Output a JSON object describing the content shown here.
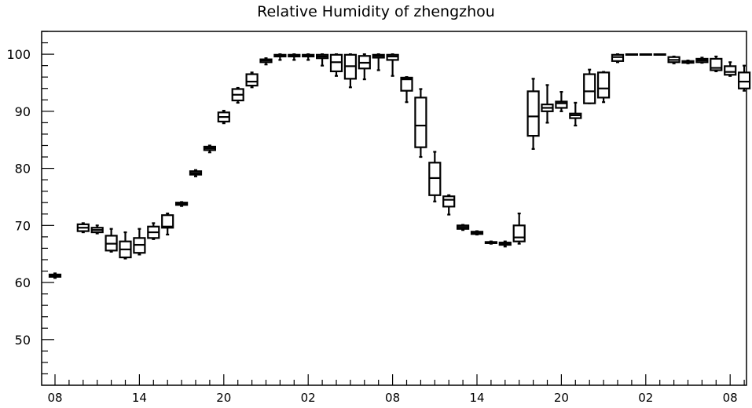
{
  "chart_data": {
    "type": "box",
    "title": "Relative Humidity of zhengzhou",
    "xlabel": "",
    "ylabel": "",
    "ylim": [
      42,
      104
    ],
    "yticks": [
      50,
      60,
      70,
      80,
      90,
      100
    ],
    "xticks": [
      {
        "label": "08",
        "index": 0
      },
      {
        "label": "14",
        "index": 6
      },
      {
        "label": "20",
        "index": 12
      },
      {
        "label": "02",
        "index": 18
      },
      {
        "label": "08",
        "index": 24
      },
      {
        "label": "14",
        "index": 30
      },
      {
        "label": "20",
        "index": 36
      },
      {
        "label": "02",
        "index": 42
      },
      {
        "label": "08",
        "index": 48
      }
    ],
    "grid": false,
    "colors": {
      "box": "#000000",
      "background": "#ffffff"
    },
    "boxes": [
      {
        "i": 0,
        "min": 60.8,
        "q1": 61.0,
        "median": 61.2,
        "q3": 61.4,
        "max": 61.6
      },
      {
        "i": 2,
        "min": 68.8,
        "q1": 69.0,
        "median": 69.6,
        "q3": 70.2,
        "max": 70.4
      },
      {
        "i": 3,
        "min": 68.6,
        "q1": 68.8,
        "median": 69.2,
        "q3": 69.6,
        "max": 70.0
      },
      {
        "i": 4,
        "min": 65.4,
        "q1": 65.6,
        "median": 66.8,
        "q3": 68.2,
        "max": 69.4
      },
      {
        "i": 5,
        "min": 64.2,
        "q1": 64.4,
        "median": 65.8,
        "q3": 67.2,
        "max": 68.8
      },
      {
        "i": 6,
        "min": 64.9,
        "q1": 65.2,
        "median": 66.6,
        "q3": 67.8,
        "max": 69.4
      },
      {
        "i": 7,
        "min": 67.6,
        "q1": 67.8,
        "median": 68.8,
        "q3": 69.8,
        "max": 70.4
      },
      {
        "i": 8,
        "min": 68.4,
        "q1": 69.6,
        "median": 69.8,
        "q3": 71.8,
        "max": 72.1
      },
      {
        "i": 9,
        "min": 73.4,
        "q1": 73.6,
        "median": 73.8,
        "q3": 74.0,
        "max": 74.1
      },
      {
        "i": 10,
        "min": 78.6,
        "q1": 78.9,
        "median": 79.2,
        "q3": 79.5,
        "max": 79.7
      },
      {
        "i": 11,
        "min": 82.8,
        "q1": 83.2,
        "median": 83.5,
        "q3": 83.8,
        "max": 84.0
      },
      {
        "i": 12,
        "min": 87.9,
        "q1": 88.2,
        "median": 89.0,
        "q3": 89.8,
        "max": 90.1
      },
      {
        "i": 13,
        "min": 91.5,
        "q1": 91.9,
        "median": 92.9,
        "q3": 93.9,
        "max": 94.1
      },
      {
        "i": 14,
        "min": 94.2,
        "q1": 94.5,
        "median": 95.2,
        "q3": 96.5,
        "max": 96.8
      },
      {
        "i": 15,
        "min": 98.2,
        "q1": 98.6,
        "median": 98.9,
        "q3": 99.1,
        "max": 99.3
      },
      {
        "i": 16,
        "min": 99.0,
        "q1": 99.6,
        "median": 99.8,
        "q3": 99.9,
        "max": 100.0
      },
      {
        "i": 17,
        "min": 99.0,
        "q1": 99.6,
        "median": 99.8,
        "q3": 99.9,
        "max": 100.0
      },
      {
        "i": 18,
        "min": 99.0,
        "q1": 99.6,
        "median": 99.8,
        "q3": 99.9,
        "max": 100.0
      },
      {
        "i": 19,
        "min": 98.0,
        "q1": 99.3,
        "median": 99.6,
        "q3": 99.9,
        "max": 100.0
      },
      {
        "i": 20,
        "min": 96.2,
        "q1": 97.0,
        "median": 98.6,
        "q3": 99.9,
        "max": 100.0
      },
      {
        "i": 21,
        "min": 94.2,
        "q1": 95.7,
        "median": 97.9,
        "q3": 99.9,
        "max": 100.0
      },
      {
        "i": 22,
        "min": 95.6,
        "q1": 97.5,
        "median": 98.5,
        "q3": 99.7,
        "max": 100.0
      },
      {
        "i": 23,
        "min": 97.2,
        "q1": 99.4,
        "median": 99.7,
        "q3": 99.9,
        "max": 100.0
      },
      {
        "i": 24,
        "min": 96.2,
        "q1": 99.0,
        "median": 99.6,
        "q3": 99.9,
        "max": 100.0
      },
      {
        "i": 25,
        "min": 91.6,
        "q1": 93.6,
        "median": 95.6,
        "q3": 95.9,
        "max": 96.0
      },
      {
        "i": 26,
        "min": 82.0,
        "q1": 83.7,
        "median": 87.5,
        "q3": 92.4,
        "max": 93.9
      },
      {
        "i": 27,
        "min": 74.2,
        "q1": 75.3,
        "median": 78.3,
        "q3": 81.0,
        "max": 82.9
      },
      {
        "i": 28,
        "min": 71.9,
        "q1": 73.3,
        "median": 74.5,
        "q3": 75.1,
        "max": 75.3
      },
      {
        "i": 29,
        "min": 69.2,
        "q1": 69.4,
        "median": 69.7,
        "q3": 70.0,
        "max": 70.1
      },
      {
        "i": 30,
        "min": 68.4,
        "q1": 68.5,
        "median": 68.7,
        "q3": 68.9,
        "max": 69.0
      },
      {
        "i": 31,
        "min": 66.8,
        "q1": 66.9,
        "median": 67.0,
        "q3": 67.1,
        "max": 67.2
      },
      {
        "i": 32,
        "min": 66.3,
        "q1": 66.6,
        "median": 66.8,
        "q3": 67.0,
        "max": 67.2
      },
      {
        "i": 33,
        "min": 66.8,
        "q1": 67.2,
        "median": 67.9,
        "q3": 70.0,
        "max": 72.1
      },
      {
        "i": 34,
        "min": 83.4,
        "q1": 85.7,
        "median": 89.1,
        "q3": 93.5,
        "max": 95.7
      },
      {
        "i": 35,
        "min": 88.0,
        "q1": 90.0,
        "median": 90.6,
        "q3": 91.2,
        "max": 94.6
      },
      {
        "i": 36,
        "min": 90.0,
        "q1": 90.6,
        "median": 91.4,
        "q3": 91.7,
        "max": 93.4
      },
      {
        "i": 37,
        "min": 87.5,
        "q1": 88.8,
        "median": 89.3,
        "q3": 89.6,
        "max": 91.5
      },
      {
        "i": 38,
        "min": 91.4,
        "q1": 91.4,
        "median": 93.5,
        "q3": 96.5,
        "max": 97.3
      },
      {
        "i": 39,
        "min": 91.6,
        "q1": 92.4,
        "median": 94.0,
        "q3": 96.8,
        "max": 96.9
      },
      {
        "i": 40,
        "min": 98.6,
        "q1": 98.8,
        "median": 99.5,
        "q3": 99.9,
        "max": 100.0
      },
      {
        "i": 41,
        "min": 99.9,
        "q1": 99.95,
        "median": 100.0,
        "q3": 100.0,
        "max": 100.0
      },
      {
        "i": 42,
        "min": 99.9,
        "q1": 99.95,
        "median": 100.0,
        "q3": 100.0,
        "max": 100.0
      },
      {
        "i": 43,
        "min": 99.9,
        "q1": 99.95,
        "median": 100.0,
        "q3": 100.0,
        "max": 100.0
      },
      {
        "i": 44,
        "min": 98.4,
        "q1": 98.6,
        "median": 99.0,
        "q3": 99.5,
        "max": 99.6
      },
      {
        "i": 45,
        "min": 98.4,
        "q1": 98.5,
        "median": 98.7,
        "q3": 98.8,
        "max": 98.9
      },
      {
        "i": 46,
        "min": 98.5,
        "q1": 98.6,
        "median": 98.9,
        "q3": 99.2,
        "max": 99.4
      },
      {
        "i": 47,
        "min": 97.0,
        "q1": 97.2,
        "median": 97.6,
        "q3": 99.2,
        "max": 99.6
      },
      {
        "i": 48,
        "min": 96.2,
        "q1": 96.4,
        "median": 96.9,
        "q3": 97.9,
        "max": 98.6
      },
      {
        "i": 49,
        "min": 93.6,
        "q1": 94.0,
        "median": 95.2,
        "q3": 96.8,
        "max": 98.0
      }
    ]
  }
}
